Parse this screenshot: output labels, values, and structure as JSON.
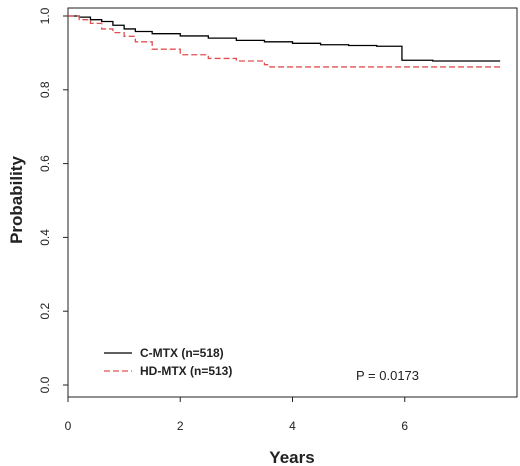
{
  "chart_data": {
    "type": "line",
    "xlabel": "Years",
    "ylabel": "Probability",
    "xlim": [
      0,
      8
    ],
    "ylim": [
      0,
      1.0
    ],
    "x_ticks": [
      "0",
      "2",
      "4",
      "6"
    ],
    "y_ticks": [
      "0.0",
      "0.2",
      "0.4",
      "0.6",
      "0.8",
      "1.0"
    ],
    "grid": false,
    "legend_position": "bottom-left",
    "annotation": "P = 0.0173",
    "series": [
      {
        "name": "C-MTX (n=518)",
        "color": "#000000",
        "style": "solid",
        "step": true,
        "points": [
          [
            0,
            1.0
          ],
          [
            0.2,
            0.997
          ],
          [
            0.4,
            0.99
          ],
          [
            0.6,
            0.985
          ],
          [
            0.8,
            0.975
          ],
          [
            1.0,
            0.965
          ],
          [
            1.2,
            0.958
          ],
          [
            1.5,
            0.952
          ],
          [
            2.0,
            0.946
          ],
          [
            2.5,
            0.94
          ],
          [
            3.0,
            0.934
          ],
          [
            3.5,
            0.93
          ],
          [
            4.0,
            0.926
          ],
          [
            4.5,
            0.922
          ],
          [
            5.0,
            0.92
          ],
          [
            5.5,
            0.918
          ],
          [
            5.95,
            0.88
          ],
          [
            6.5,
            0.878
          ],
          [
            7.7,
            0.878
          ]
        ]
      },
      {
        "name": "HD-MTX (n=513)",
        "color": "#e05050",
        "style": "dashed",
        "step": true,
        "points": [
          [
            0,
            1.0
          ],
          [
            0.2,
            0.99
          ],
          [
            0.4,
            0.98
          ],
          [
            0.6,
            0.965
          ],
          [
            0.8,
            0.955
          ],
          [
            1.0,
            0.945
          ],
          [
            1.2,
            0.93
          ],
          [
            1.5,
            0.91
          ],
          [
            2.0,
            0.895
          ],
          [
            2.5,
            0.885
          ],
          [
            3.0,
            0.878
          ],
          [
            3.5,
            0.868
          ],
          [
            3.6,
            0.862
          ],
          [
            4.5,
            0.862
          ],
          [
            6.0,
            0.862
          ],
          [
            7.7,
            0.862
          ]
        ]
      }
    ]
  }
}
